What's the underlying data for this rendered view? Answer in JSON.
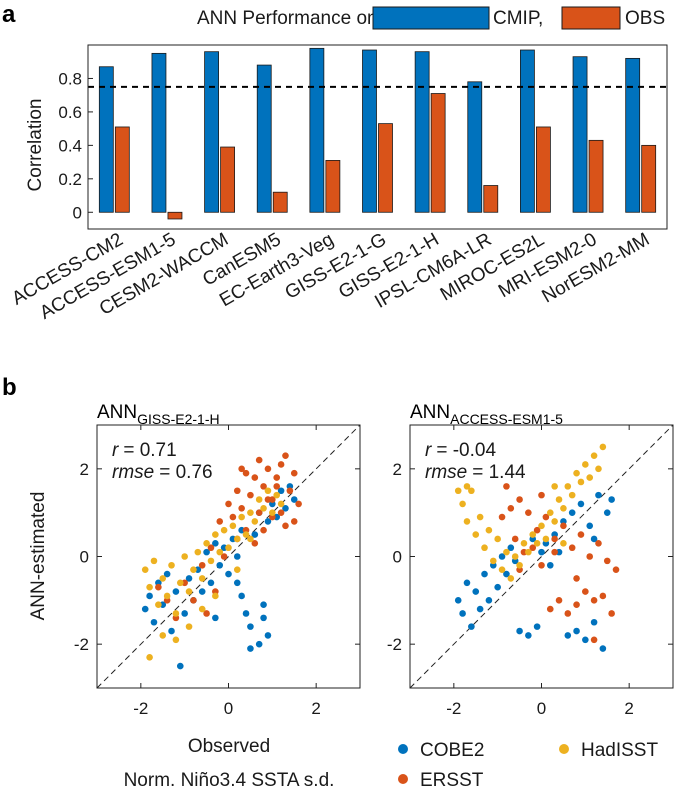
{
  "chart_data": [
    {
      "panel": "a",
      "type": "bar",
      "title": "ANN Performance on",
      "ylabel": "Correlation",
      "xlabel": "",
      "ylim": [
        -0.1,
        1.0
      ],
      "yticks": [
        0,
        0.2,
        0.4,
        0.6,
        0.8
      ],
      "ytick_labels": [
        "0",
        "0.2",
        "0.4",
        "0.6",
        "0.8"
      ],
      "reference_line": {
        "y": 0.75,
        "style": "dashed"
      },
      "grid": false,
      "legend": "top-right, inline with title",
      "categories": [
        "ACCESS-CM2",
        "ACCESS-ESM1-5",
        "CESM2-WACCM",
        "CanESM5",
        "EC-Earth3-Veg",
        "GISS-E2-1-G",
        "GISS-E2-1-H",
        "IPSL-CM6A-LR",
        "MIROC-ES2L",
        "MRI-ESM2-0",
        "NorESM2-MM"
      ],
      "series": [
        {
          "name": "CMIP,",
          "color": "#0072BD",
          "values": [
            0.87,
            0.95,
            0.96,
            0.88,
            0.98,
            0.97,
            0.96,
            0.78,
            0.97,
            0.93,
            0.92
          ]
        },
        {
          "name": "OBS",
          "color": "#D95319",
          "values": [
            0.51,
            -0.04,
            0.39,
            0.12,
            0.31,
            0.53,
            0.71,
            0.16,
            0.51,
            0.43,
            0.4
          ]
        }
      ]
    },
    {
      "panel": "b",
      "type": "scatter",
      "title_main": "ANN",
      "title_sub": "GISS-E2-1-H",
      "ylabel": "ANN-estimated",
      "xlabel": "Observed",
      "xlim": [
        -3,
        3
      ],
      "ylim": [
        -3,
        3
      ],
      "ticks": [
        -2,
        0,
        2
      ],
      "tick_labels": [
        "-2",
        "0",
        "2"
      ],
      "stat_r_label": "r",
      "stat_r_value": "= 0.71",
      "stat_rmse_label": "rmse",
      "stat_rmse_value": "= 0.76",
      "series": [
        {
          "name": "COBE2",
          "color": "#0072BD",
          "points": [
            [
              -1.9,
              -1.2
            ],
            [
              -1.8,
              -0.9
            ],
            [
              -1.7,
              -1.5
            ],
            [
              -1.6,
              -0.6
            ],
            [
              -1.5,
              -1.1
            ],
            [
              -1.4,
              -0.4
            ],
            [
              -1.3,
              -1.7
            ],
            [
              -1.2,
              -0.8
            ],
            [
              -1.1,
              -2.5
            ],
            [
              -1.0,
              -1.3
            ],
            [
              -0.9,
              -0.5
            ],
            [
              -0.8,
              -1.0
            ],
            [
              -0.7,
              -0.3
            ],
            [
              -0.6,
              -0.8
            ],
            [
              -0.5,
              0.1
            ],
            [
              -0.4,
              -0.6
            ],
            [
              -0.3,
              0.3
            ],
            [
              -0.2,
              -0.2
            ],
            [
              -0.1,
              0.2
            ],
            [
              0.0,
              -0.4
            ],
            [
              0.1,
              0.4
            ],
            [
              0.2,
              0.0
            ],
            [
              0.3,
              0.6
            ],
            [
              0.4,
              -1.3
            ],
            [
              0.5,
              -1.6
            ],
            [
              0.6,
              0.5
            ],
            [
              0.7,
              1.0
            ],
            [
              0.8,
              -1.1
            ],
            [
              0.9,
              0.8
            ],
            [
              1.0,
              1.2
            ],
            [
              1.1,
              0.9
            ],
            [
              1.2,
              1.5
            ],
            [
              1.3,
              1.1
            ],
            [
              1.4,
              1.6
            ],
            [
              0.7,
              -2.0
            ],
            [
              0.5,
              -2.1
            ],
            [
              0.3,
              -0.9
            ],
            [
              -0.3,
              -1.4
            ],
            [
              0.9,
              -1.8
            ],
            [
              0.8,
              -1.4
            ],
            [
              0.2,
              -0.6
            ],
            [
              1.5,
              1.3
            ]
          ]
        },
        {
          "name": "ERSST",
          "color": "#D95319",
          "points": [
            [
              0.0,
              1.2
            ],
            [
              0.1,
              0.9
            ],
            [
              0.2,
              1.5
            ],
            [
              0.3,
              1.1
            ],
            [
              0.4,
              0.6
            ],
            [
              0.5,
              1.4
            ],
            [
              0.6,
              1.8
            ],
            [
              0.7,
              1.0
            ],
            [
              0.8,
              1.6
            ],
            [
              0.9,
              2.0
            ],
            [
              1.0,
              1.3
            ],
            [
              1.1,
              1.8
            ],
            [
              1.2,
              1.0
            ],
            [
              1.3,
              2.3
            ],
            [
              1.4,
              1.5
            ],
            [
              1.5,
              1.9
            ],
            [
              1.6,
              1.2
            ],
            [
              0.2,
              0.4
            ],
            [
              0.4,
              1.9
            ],
            [
              0.6,
              0.3
            ],
            [
              0.8,
              0.6
            ],
            [
              1.0,
              0.9
            ],
            [
              1.2,
              2.1
            ],
            [
              -0.2,
              0.8
            ],
            [
              -0.4,
              0.2
            ],
            [
              -0.6,
              -0.2
            ],
            [
              -0.8,
              -1.0
            ],
            [
              -1.0,
              -0.6
            ],
            [
              -1.2,
              -1.4
            ],
            [
              -1.4,
              -1.0
            ],
            [
              -1.6,
              -0.7
            ],
            [
              -0.5,
              -1.3
            ],
            [
              -0.3,
              -0.8
            ],
            [
              -0.1,
              0.0
            ],
            [
              1.5,
              0.8
            ],
            [
              0.9,
              1.3
            ],
            [
              1.3,
              0.7
            ],
            [
              0.3,
              2.0
            ],
            [
              0.7,
              2.2
            ],
            [
              1.1,
              1.6
            ]
          ]
        },
        {
          "name": "HadISST",
          "color": "#EDB120",
          "points": [
            [
              -1.9,
              -0.3
            ],
            [
              -1.8,
              -0.7
            ],
            [
              -1.7,
              -0.1
            ],
            [
              -1.6,
              -1.1
            ],
            [
              -1.5,
              -0.5
            ],
            [
              -1.4,
              -0.9
            ],
            [
              -1.3,
              -0.2
            ],
            [
              -1.2,
              -1.3
            ],
            [
              -1.1,
              -0.6
            ],
            [
              -1.0,
              0.0
            ],
            [
              -0.9,
              -0.8
            ],
            [
              -0.8,
              -0.3
            ],
            [
              -0.7,
              0.1
            ],
            [
              -0.6,
              -0.5
            ],
            [
              -0.5,
              0.3
            ],
            [
              -0.4,
              -0.1
            ],
            [
              -0.3,
              0.5
            ],
            [
              -0.2,
              0.1
            ],
            [
              -0.1,
              0.6
            ],
            [
              0.0,
              0.2
            ],
            [
              0.1,
              0.7
            ],
            [
              0.2,
              0.4
            ],
            [
              0.3,
              0.9
            ],
            [
              0.4,
              0.5
            ],
            [
              0.5,
              1.0
            ],
            [
              0.6,
              0.8
            ],
            [
              0.7,
              1.3
            ],
            [
              0.8,
              1.1
            ],
            [
              0.9,
              1.5
            ],
            [
              1.0,
              1.0
            ],
            [
              1.1,
              1.4
            ],
            [
              1.2,
              1.2
            ],
            [
              -1.8,
              -2.3
            ],
            [
              -1.5,
              -1.8
            ],
            [
              -1.2,
              -1.9
            ],
            [
              -0.9,
              -1.6
            ],
            [
              -0.6,
              -1.2
            ],
            [
              -0.3,
              -0.9
            ],
            [
              0.2,
              -0.3
            ],
            [
              0.5,
              0.4
            ]
          ]
        }
      ]
    },
    {
      "panel": "b",
      "type": "scatter",
      "title_main": "ANN",
      "title_sub": "ACCESS-ESM1-5",
      "xlim": [
        -3,
        3
      ],
      "ylim": [
        -3,
        3
      ],
      "ticks": [
        -2,
        0,
        2
      ],
      "tick_labels": [
        "-2",
        "0",
        "2"
      ],
      "stat_r_label": "r",
      "stat_r_value": "= -0.04",
      "stat_rmse_label": "rmse",
      "stat_rmse_value": "= 1.44",
      "series": [
        {
          "name": "COBE2",
          "color": "#0072BD",
          "points": [
            [
              -1.9,
              -1.0
            ],
            [
              -1.8,
              -1.3
            ],
            [
              -1.7,
              -0.6
            ],
            [
              -1.6,
              -1.6
            ],
            [
              -1.5,
              -0.8
            ],
            [
              -1.4,
              -1.2
            ],
            [
              -1.3,
              -0.4
            ],
            [
              -1.2,
              -1.0
            ],
            [
              -1.1,
              -0.2
            ],
            [
              -1.0,
              -0.7
            ],
            [
              -0.9,
              0.0
            ],
            [
              -0.8,
              -0.4
            ],
            [
              -0.7,
              0.2
            ],
            [
              -0.6,
              -0.1
            ],
            [
              -0.5,
              -1.7
            ],
            [
              -0.3,
              -1.8
            ],
            [
              -0.1,
              -1.6
            ],
            [
              0.1,
              0.3
            ],
            [
              0.3,
              0.5
            ],
            [
              0.5,
              0.8
            ],
            [
              0.7,
              1.0
            ],
            [
              0.9,
              1.2
            ],
            [
              1.1,
              0.7
            ],
            [
              1.3,
              1.4
            ],
            [
              1.5,
              1.0
            ],
            [
              0.8,
              -1.7
            ],
            [
              1.0,
              -1.9
            ],
            [
              1.2,
              -1.5
            ],
            [
              1.4,
              -2.1
            ],
            [
              0.6,
              -1.8
            ],
            [
              0.4,
              0.1
            ],
            [
              0.2,
              -0.2
            ],
            [
              -0.2,
              0.4
            ],
            [
              0.0,
              0.1
            ],
            [
              1.6,
              1.3
            ],
            [
              1.2,
              0.4
            ]
          ]
        },
        {
          "name": "ERSST",
          "color": "#D95319",
          "points": [
            [
              -0.9,
              0.9
            ],
            [
              -0.7,
              1.1
            ],
            [
              -0.5,
              1.3
            ],
            [
              -0.3,
              1.0
            ],
            [
              -0.1,
              0.6
            ],
            [
              0.1,
              0.9
            ],
            [
              0.3,
              0.4
            ],
            [
              0.5,
              0.7
            ],
            [
              0.7,
              0.2
            ],
            [
              0.9,
              0.5
            ],
            [
              1.1,
              0.0
            ],
            [
              1.3,
              0.3
            ],
            [
              1.5,
              -0.1
            ],
            [
              1.7,
              -0.3
            ],
            [
              0.2,
              -1.2
            ],
            [
              0.4,
              -1.0
            ],
            [
              0.6,
              -1.3
            ],
            [
              0.8,
              -1.1
            ],
            [
              1.0,
              -0.8
            ],
            [
              1.2,
              -1.0
            ],
            [
              1.4,
              -0.9
            ],
            [
              1.6,
              -1.3
            ],
            [
              -0.6,
              0.4
            ],
            [
              -0.4,
              0.1
            ],
            [
              -0.2,
              0.2
            ],
            [
              0.0,
              -0.2
            ],
            [
              -0.8,
              1.6
            ],
            [
              0.0,
              1.4
            ],
            [
              0.8,
              -0.5
            ],
            [
              1.2,
              -1.9
            ],
            [
              -0.5,
              -0.3
            ],
            [
              0.3,
              0.1
            ]
          ]
        },
        {
          "name": "HadISST",
          "color": "#EDB120",
          "points": [
            [
              -1.9,
              1.5
            ],
            [
              -1.8,
              1.2
            ],
            [
              -1.7,
              0.8
            ],
            [
              -1.6,
              1.5
            ],
            [
              -1.5,
              0.5
            ],
            [
              -1.4,
              0.9
            ],
            [
              -1.3,
              0.2
            ],
            [
              -1.2,
              0.6
            ],
            [
              -1.1,
              -0.1
            ],
            [
              -1.0,
              0.4
            ],
            [
              -0.9,
              -0.3
            ],
            [
              -0.8,
              0.1
            ],
            [
              -0.7,
              -0.5
            ],
            [
              -0.6,
              0.0
            ],
            [
              -0.5,
              -0.2
            ],
            [
              -0.4,
              0.3
            ],
            [
              -0.3,
              0.1
            ],
            [
              -0.2,
              0.5
            ],
            [
              -0.1,
              0.3
            ],
            [
              0.0,
              0.7
            ],
            [
              0.1,
              0.4
            ],
            [
              0.2,
              1.0
            ],
            [
              0.3,
              0.8
            ],
            [
              0.4,
              1.3
            ],
            [
              0.5,
              1.1
            ],
            [
              0.6,
              1.6
            ],
            [
              0.7,
              1.4
            ],
            [
              0.8,
              1.9
            ],
            [
              0.9,
              1.7
            ],
            [
              1.0,
              2.1
            ],
            [
              1.1,
              1.8
            ],
            [
              1.2,
              2.3
            ],
            [
              1.3,
              2.0
            ],
            [
              1.4,
              2.5
            ],
            [
              -1.7,
              1.6
            ],
            [
              0.3,
              1.6
            ],
            [
              0.5,
              0.3
            ]
          ]
        }
      ]
    }
  ],
  "panel_letters": {
    "a": "a",
    "b": "b"
  },
  "panel_b_xlabel_2": "Norm. Niño3.4 SSTA s.d.",
  "legend_b": [
    {
      "name": "COBE2",
      "color": "#0072BD"
    },
    {
      "name": "HadISST",
      "color": "#EDB120"
    },
    {
      "name": "ERSST",
      "color": "#D95319"
    }
  ]
}
